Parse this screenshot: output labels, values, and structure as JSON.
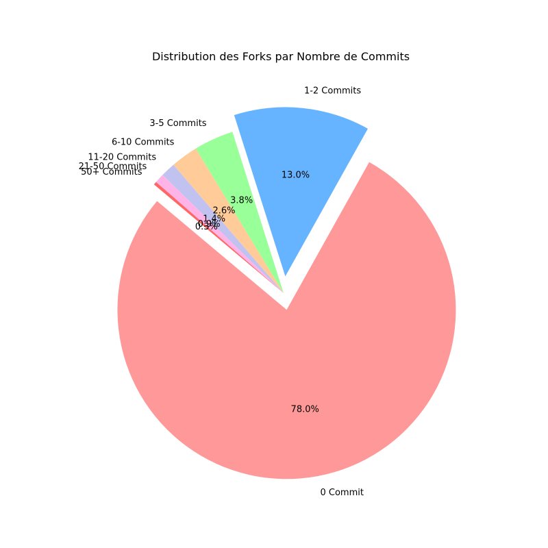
{
  "chart_data": {
    "type": "pie",
    "title": "Distribution des Forks par Nombre de Commits",
    "start_angle_deg": 140,
    "direction": "counterclockwise",
    "slices": [
      {
        "label": "0 Commit",
        "value": 78.0,
        "pct_text": "78.0%",
        "color": "#ff9999",
        "exploded": true
      },
      {
        "label": "1-2 Commits",
        "value": 13.0,
        "pct_text": "13.0%",
        "color": "#66b3ff",
        "exploded": true
      },
      {
        "label": "3-5 Commits",
        "value": 3.8,
        "pct_text": "3.8%",
        "color": "#99ff99",
        "exploded": false
      },
      {
        "label": "6-10 Commits",
        "value": 2.6,
        "pct_text": "2.6%",
        "color": "#ffcc99",
        "exploded": false
      },
      {
        "label": "11-20 Commits",
        "value": 1.4,
        "pct_text": "1.4%",
        "color": "#c2c2f0",
        "exploded": false
      },
      {
        "label": "21-50 Commits",
        "value": 0.9,
        "pct_text": "0.9%",
        "color": "#ffb3e6",
        "exploded": false
      },
      {
        "label": "50+ Commits",
        "value": 0.3,
        "pct_text": "0.3%",
        "color": "#ff6666",
        "exploded": false
      }
    ]
  }
}
